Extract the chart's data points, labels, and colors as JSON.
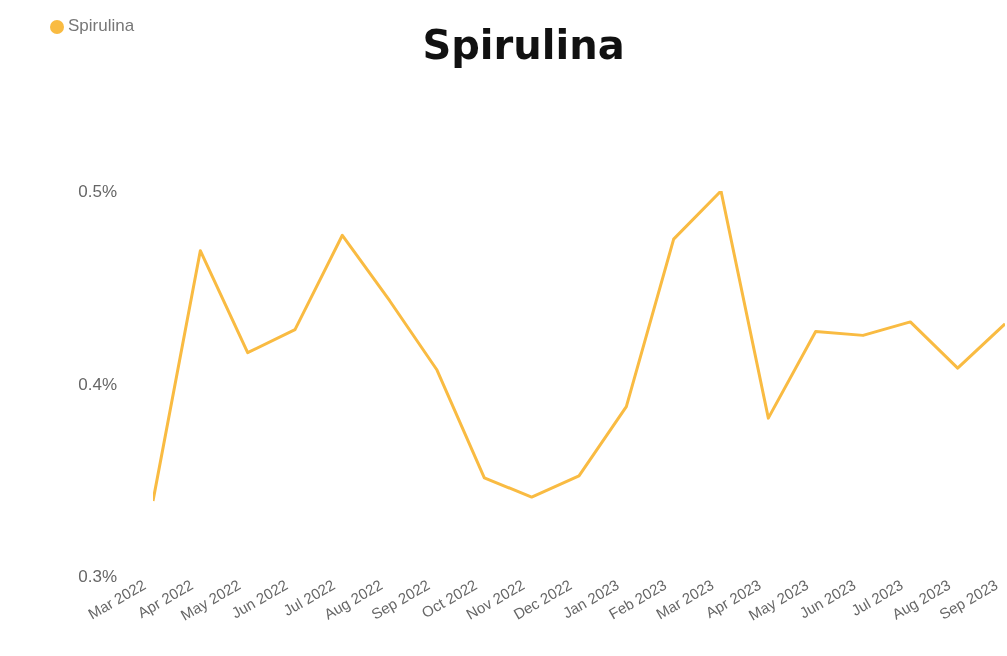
{
  "chart_data": {
    "type": "line",
    "title": "Spirulina",
    "categories": [
      "Mar 2022",
      "Apr 2022",
      "May 2022",
      "Jun 2022",
      "Jul 2022",
      "Aug 2022",
      "Sep 2022",
      "Oct 2022",
      "Nov 2022",
      "Dec 2022",
      "Jan 2023",
      "Feb 2023",
      "Mar 2023",
      "Apr 2023",
      "May 2023",
      "Jun 2023",
      "Jul 2023",
      "Aug 2023",
      "Sep 2023"
    ],
    "series": [
      {
        "name": "Spirulina",
        "color": "#f9bb42",
        "values": [
          0.339,
          0.469,
          0.416,
          0.428,
          0.477,
          0.443,
          0.407,
          0.351,
          0.341,
          0.352,
          0.388,
          0.475,
          0.5,
          0.382,
          0.427,
          0.425,
          0.432,
          0.408,
          0.431
        ]
      }
    ],
    "ylim": [
      0.3,
      0.5
    ],
    "yticks": [
      {
        "value": 0.3,
        "label": "0.3%"
      },
      {
        "value": 0.4,
        "label": "0.4%"
      },
      {
        "value": 0.5,
        "label": "0.5%"
      }
    ],
    "grid": false,
    "legend": "top left",
    "marker": "none",
    "line_style": "solid"
  }
}
